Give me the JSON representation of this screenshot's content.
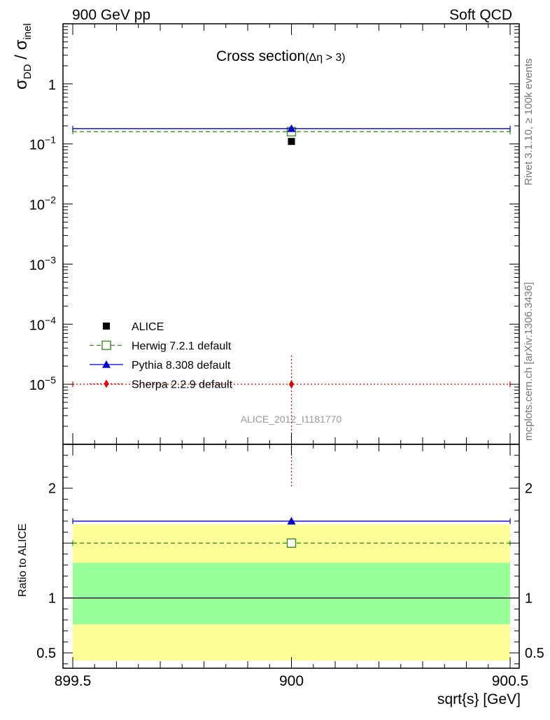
{
  "header": {
    "left": "900 GeV pp",
    "right": "Soft QCD"
  },
  "side_labels": {
    "rivet": "Rivet 3.1.10, ≥ 100k events",
    "mcplots": "mcplots.cern.ch [arXiv:1306.3436]"
  },
  "analysis_id": "ALICE_2012_I1181770",
  "chart_data": [
    {
      "type": "scatter",
      "panel": "main",
      "title": {
        "main": "Cross section",
        "sub": "(Δη > 3)"
      },
      "ylabel": {
        "base": "σ",
        "sub1": "DD",
        "sep": " / σ",
        "sub2": "inel"
      },
      "xlabel": "sqrt{s} [GeV]",
      "y_scale": "log",
      "ylim": [
        1e-06,
        10
      ],
      "xlim": [
        899.5,
        900.5
      ],
      "y_tick_labels": [
        {
          "value": 1,
          "base": "1",
          "exp": ""
        },
        {
          "value": 0.1,
          "base": "10",
          "exp": "−1"
        },
        {
          "value": 0.01,
          "base": "10",
          "exp": "−2"
        },
        {
          "value": 0.001,
          "base": "10",
          "exp": "−3"
        },
        {
          "value": 0.0001,
          "base": "10",
          "exp": "−4"
        },
        {
          "value": 1e-05,
          "base": "10",
          "exp": "−5"
        }
      ],
      "legend_position": "bottom-left",
      "series": [
        {
          "name": "ALICE",
          "x": [
            900
          ],
          "y": [
            0.11
          ],
          "color": "#000000",
          "marker": "square-filled",
          "line": "none"
        },
        {
          "name": "Herwig 7.2.1 default",
          "x": [
            900
          ],
          "y": [
            0.16
          ],
          "color": "#3a8f22",
          "marker": "square-open",
          "line": "dashed"
        },
        {
          "name": "Pythia 8.308 default",
          "x": [
            900
          ],
          "y": [
            0.18
          ],
          "color": "#0000cc",
          "marker": "triangle",
          "line": "solid"
        },
        {
          "name": "Sherpa 2.2.9 default",
          "x": [
            900
          ],
          "y": [
            1e-05
          ],
          "y_err_up": 2e-05,
          "color": "#dd0000",
          "marker": "diamond",
          "line": "dotted"
        }
      ]
    },
    {
      "type": "scatter",
      "panel": "ratio",
      "ylabel": "Ratio to ALICE",
      "xlabel": "sqrt{s} [GeV]",
      "ylim": [
        0.36,
        2.4
      ],
      "xlim": [
        899.5,
        900.5
      ],
      "x_ticks": [
        "899.5",
        "900",
        "900.5"
      ],
      "y_ticks": [
        "0.5",
        "1",
        "2"
      ],
      "y_tick_values": [
        0.5,
        1,
        2
      ],
      "bands": [
        {
          "label": "outer",
          "low": 0.43,
          "high": 1.67,
          "color": "#ffff99"
        },
        {
          "label": "inner",
          "low": 0.76,
          "high": 1.32,
          "color": "#99ff99"
        }
      ],
      "series": [
        {
          "name": "Herwig 7.2.1 default",
          "x": [
            900
          ],
          "y": [
            1.5
          ],
          "color": "#3a8f22"
        },
        {
          "name": "Pythia 8.308 default",
          "x": [
            900
          ],
          "y": [
            1.7
          ],
          "color": "#0000cc"
        }
      ]
    }
  ]
}
